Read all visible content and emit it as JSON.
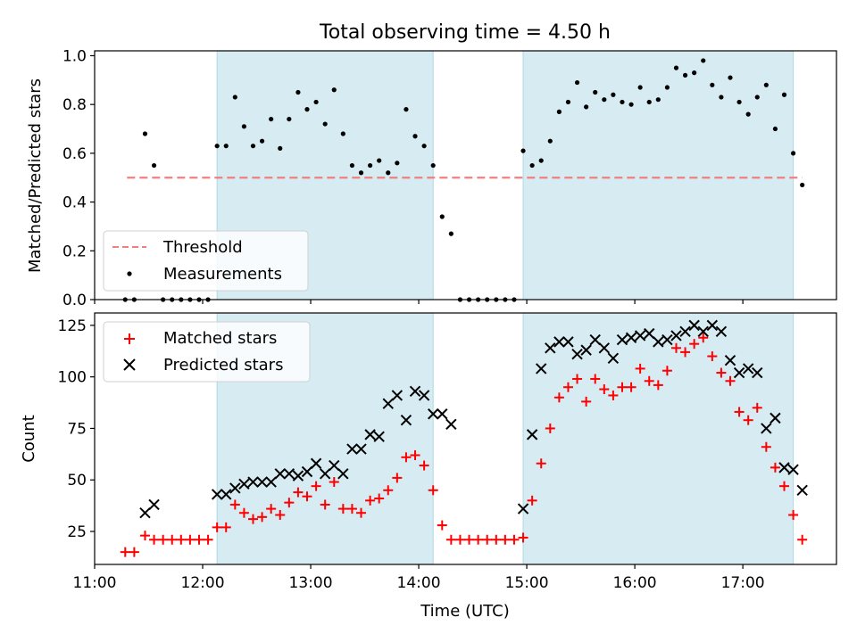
{
  "figure": {
    "title": "Total observing time = 4.50 h",
    "xlabel": "Time (UTC)",
    "x_ticks": [
      "11:00",
      "12:00",
      "13:00",
      "14:00",
      "15:00",
      "16:00",
      "17:00"
    ]
  },
  "chart_data": [
    {
      "type": "scatter",
      "panel": "top",
      "title": "Total observing time = 4.50 h",
      "xlabel": "",
      "ylabel": "Matched/Predicted stars",
      "xlim": [
        "11:00",
        "17:52"
      ],
      "ylim": [
        0,
        1.02
      ],
      "y_ticks": [
        "0.0",
        "0.2",
        "0.4",
        "0.6",
        "0.8",
        "1.0"
      ],
      "shaded_intervals": [
        [
          "12:08",
          "14:08"
        ],
        [
          "14:58",
          "17:28"
        ]
      ],
      "legend_position": "lower-left",
      "series": [
        {
          "name": "Threshold",
          "style": "dashed-line",
          "color": "#f08080",
          "x": [
            "11:18",
            "17:33"
          ],
          "y": [
            0.5,
            0.5
          ]
        },
        {
          "name": "Measurements",
          "style": "dot",
          "color": "#000000",
          "x": [
            "11:17",
            "11:22",
            "11:28",
            "11:33",
            "11:38",
            "11:43",
            "11:48",
            "11:53",
            "11:58",
            "12:03",
            "12:08",
            "12:13",
            "12:18",
            "12:23",
            "12:28",
            "12:33",
            "12:38",
            "12:43",
            "12:48",
            "12:53",
            "12:58",
            "13:03",
            "13:08",
            "13:13",
            "13:18",
            "13:23",
            "13:28",
            "13:33",
            "13:38",
            "13:43",
            "13:48",
            "13:53",
            "13:58",
            "14:03",
            "14:08",
            "14:13",
            "14:18",
            "14:23",
            "14:28",
            "14:33",
            "14:38",
            "14:43",
            "14:48",
            "14:53",
            "14:58",
            "15:03",
            "15:08",
            "15:13",
            "15:18",
            "15:23",
            "15:28",
            "15:33",
            "15:38",
            "15:43",
            "15:48",
            "15:53",
            "15:58",
            "16:03",
            "16:08",
            "16:13",
            "16:18",
            "16:23",
            "16:28",
            "16:33",
            "16:38",
            "16:43",
            "16:48",
            "16:53",
            "16:58",
            "17:03",
            "17:08",
            "17:13",
            "17:18",
            "17:23",
            "17:28",
            "17:33"
          ],
          "y": [
            0.0,
            0.0,
            0.68,
            0.55,
            0.0,
            0.0,
            0.0,
            0.0,
            0.0,
            0.0,
            0.63,
            0.63,
            0.83,
            0.71,
            0.63,
            0.65,
            0.74,
            0.62,
            0.74,
            0.85,
            0.78,
            0.81,
            0.72,
            0.86,
            0.68,
            0.55,
            0.52,
            0.55,
            0.57,
            0.52,
            0.56,
            0.78,
            0.67,
            0.63,
            0.55,
            0.34,
            0.27,
            0.0,
            0.0,
            0.0,
            0.0,
            0.0,
            0.0,
            0.0,
            0.61,
            0.55,
            0.57,
            0.65,
            0.77,
            0.81,
            0.89,
            0.79,
            0.85,
            0.82,
            0.84,
            0.81,
            0.8,
            0.87,
            0.81,
            0.82,
            0.87,
            0.95,
            0.92,
            0.93,
            0.98,
            0.88,
            0.83,
            0.91,
            0.81,
            0.76,
            0.83,
            0.88,
            0.7,
            0.84,
            0.6,
            0.47
          ]
        }
      ]
    },
    {
      "type": "scatter",
      "panel": "bottom",
      "xlabel": "Time (UTC)",
      "ylabel": "Count",
      "xlim": [
        "11:00",
        "17:52"
      ],
      "ylim": [
        9,
        131
      ],
      "y_ticks": [
        "25",
        "50",
        "75",
        "100",
        "125"
      ],
      "shaded_intervals": [
        [
          "12:08",
          "14:08"
        ],
        [
          "14:58",
          "17:28"
        ]
      ],
      "legend_position": "upper-left",
      "series": [
        {
          "name": "Matched stars",
          "style": "plus",
          "color": "#ff0000",
          "x": [
            "11:17",
            "11:22",
            "11:28",
            "11:33",
            "11:38",
            "11:43",
            "11:48",
            "11:53",
            "11:58",
            "12:03",
            "12:08",
            "12:13",
            "12:18",
            "12:23",
            "12:28",
            "12:33",
            "12:38",
            "12:43",
            "12:48",
            "12:53",
            "12:58",
            "13:03",
            "13:08",
            "13:13",
            "13:18",
            "13:23",
            "13:28",
            "13:33",
            "13:38",
            "13:43",
            "13:48",
            "13:53",
            "13:58",
            "14:03",
            "14:08",
            "14:13",
            "14:18",
            "14:23",
            "14:28",
            "14:33",
            "14:38",
            "14:43",
            "14:48",
            "14:53",
            "14:58",
            "15:03",
            "15:08",
            "15:13",
            "15:18",
            "15:23",
            "15:28",
            "15:33",
            "15:38",
            "15:43",
            "15:48",
            "15:53",
            "15:58",
            "16:03",
            "16:08",
            "16:13",
            "16:18",
            "16:23",
            "16:28",
            "16:33",
            "16:38",
            "16:43",
            "16:48",
            "16:53",
            "16:58",
            "17:03",
            "17:08",
            "17:13",
            "17:18",
            "17:23",
            "17:28",
            "17:33"
          ],
          "y": [
            15,
            15,
            23,
            21,
            21,
            21,
            21,
            21,
            21,
            21,
            27,
            27,
            38,
            34,
            31,
            32,
            36,
            33,
            39,
            44,
            42,
            47,
            38,
            49,
            36,
            36,
            34,
            40,
            41,
            45,
            51,
            61,
            62,
            57,
            45,
            28,
            21,
            21,
            21,
            21,
            21,
            21,
            21,
            21,
            22,
            40,
            58,
            75,
            90,
            95,
            99,
            88,
            99,
            94,
            91,
            95,
            95,
            104,
            98,
            96,
            103,
            114,
            112,
            116,
            119,
            110,
            102,
            98,
            83,
            79,
            85,
            66,
            56,
            47,
            33,
            21
          ]
        },
        {
          "name": "Predicted stars",
          "style": "x",
          "color": "#000000",
          "x": [
            "11:28",
            "11:33",
            "12:08",
            "12:13",
            "12:18",
            "12:23",
            "12:28",
            "12:33",
            "12:38",
            "12:43",
            "12:48",
            "12:53",
            "12:58",
            "13:03",
            "13:08",
            "13:13",
            "13:18",
            "13:23",
            "13:28",
            "13:33",
            "13:38",
            "13:43",
            "13:48",
            "13:53",
            "13:58",
            "14:03",
            "14:08",
            "14:13",
            "14:18",
            "14:58",
            "15:03",
            "15:08",
            "15:13",
            "15:18",
            "15:23",
            "15:28",
            "15:33",
            "15:38",
            "15:43",
            "15:48",
            "15:53",
            "15:58",
            "16:03",
            "16:08",
            "16:13",
            "16:18",
            "16:23",
            "16:28",
            "16:33",
            "16:38",
            "16:43",
            "16:48",
            "16:53",
            "16:58",
            "17:03",
            "17:08",
            "17:13",
            "17:18",
            "17:23",
            "17:28",
            "17:33"
          ],
          "y": [
            34,
            38,
            43,
            43,
            46,
            48,
            49,
            49,
            49,
            53,
            53,
            52,
            54,
            58,
            53,
            57,
            53,
            65,
            65,
            72,
            71,
            87,
            91,
            79,
            93,
            91,
            82,
            82,
            77,
            36,
            72,
            104,
            114,
            117,
            117,
            111,
            113,
            118,
            114,
            109,
            118,
            119,
            120,
            121,
            117,
            118,
            120,
            122,
            125,
            122,
            125,
            122,
            108,
            102,
            104,
            102,
            75,
            80,
            56,
            55,
            45
          ]
        }
      ]
    }
  ]
}
